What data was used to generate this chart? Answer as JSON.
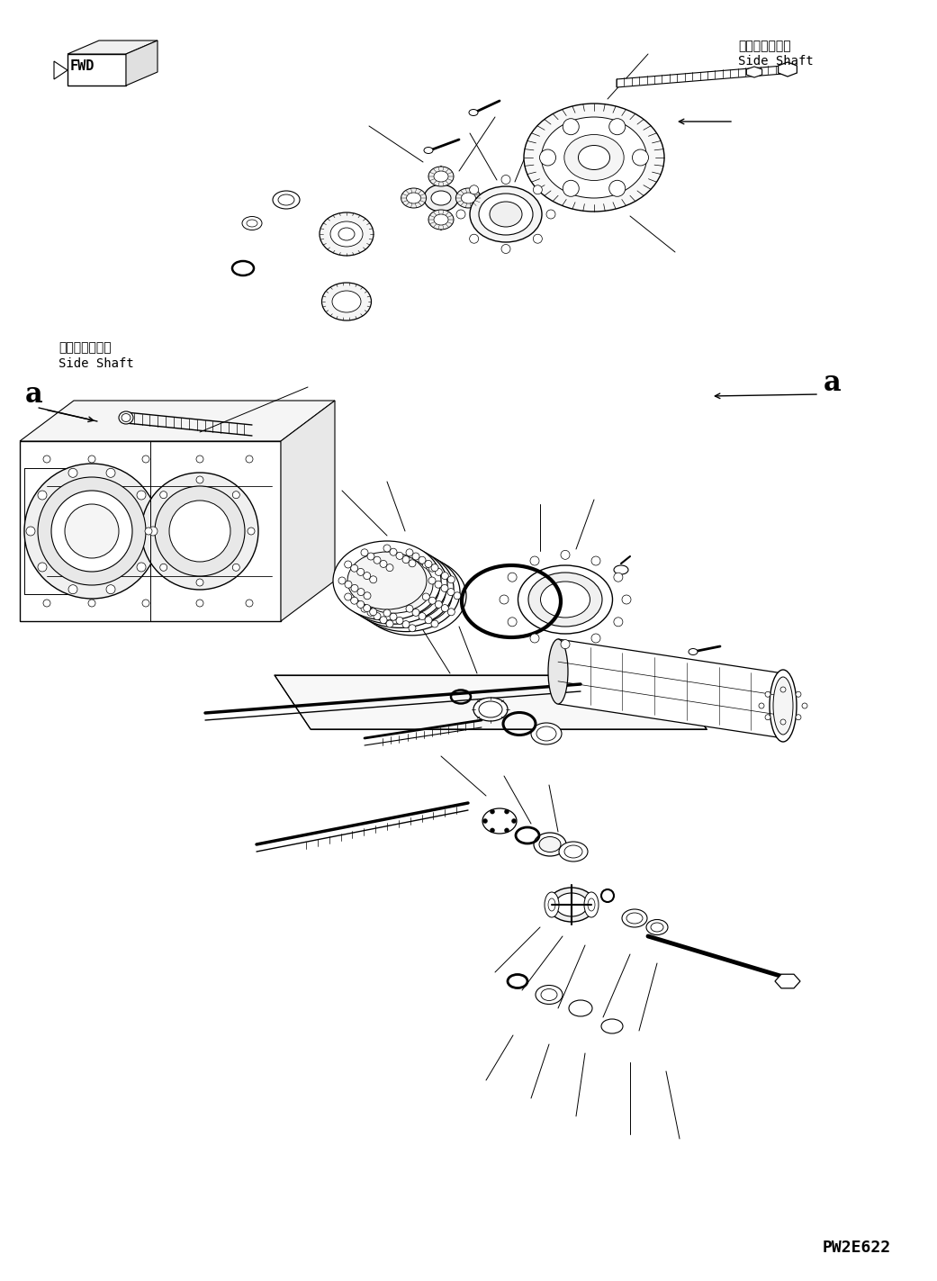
{
  "background_color": "#ffffff",
  "figure_width": 10.41,
  "figure_height": 14.23,
  "dpi": 100,
  "watermark": "PW2E622",
  "label_side_shaft_left_jp": "サイドシャフト",
  "label_side_shaft_left_en": "Side Shaft",
  "label_side_shaft_right_jp": "サイドシャフト",
  "label_side_shaft_right_en": "Side Shaft"
}
